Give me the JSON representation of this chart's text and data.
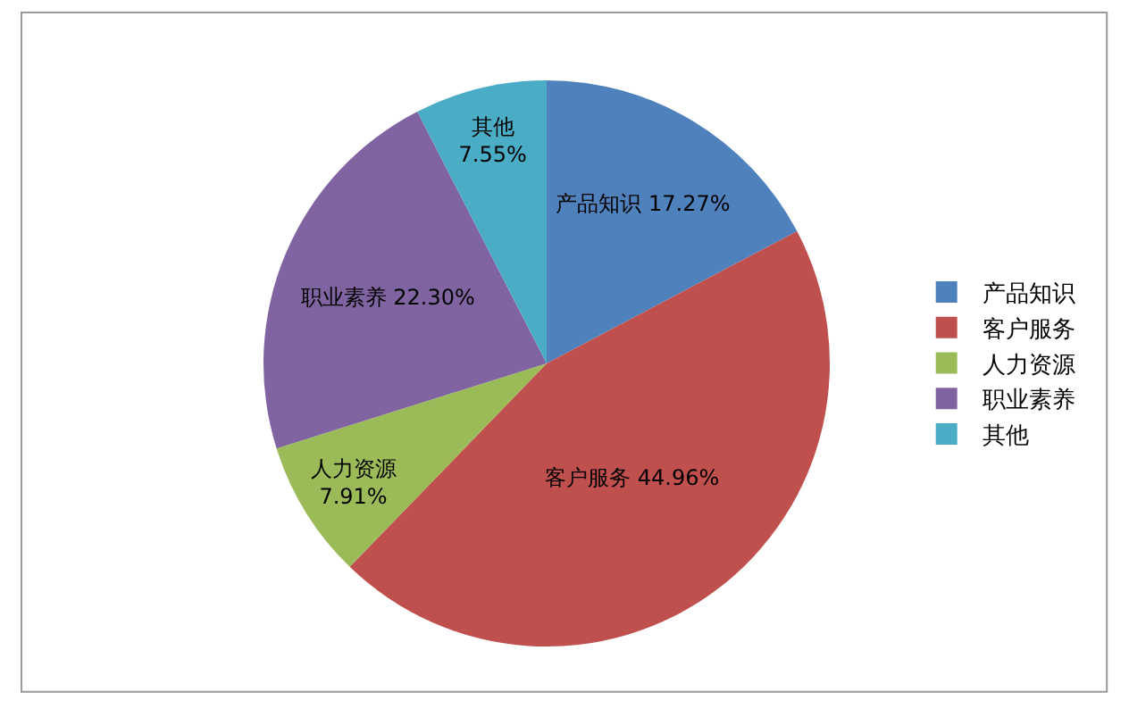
{
  "chart_data": {
    "type": "pie",
    "categories": [
      "产品知识",
      "客户服务",
      "人力资源",
      "职业素养",
      "其他"
    ],
    "values": [
      17.27,
      44.96,
      7.91,
      22.3,
      7.55
    ],
    "colors": [
      "#4f81bd",
      "#c0504d",
      "#9bbb59",
      "#8064a2",
      "#4bacc6"
    ],
    "value_labels": [
      "产品知识 17.27%",
      "客户服务 44.96%",
      "人力资源\n7.91%",
      "职业素养 22.30%",
      "其他\n7.55%"
    ],
    "legend": "right"
  }
}
